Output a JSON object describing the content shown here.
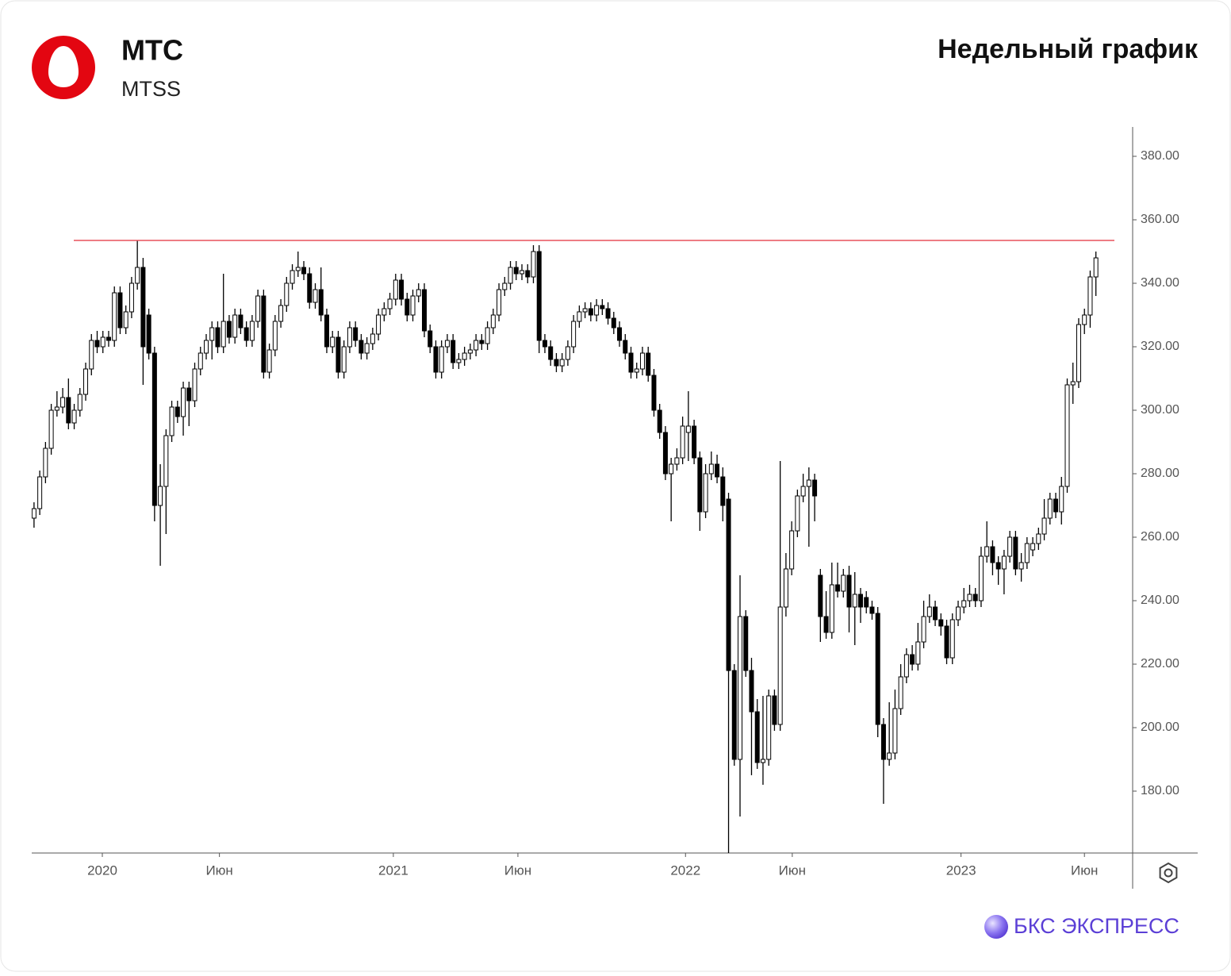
{
  "chart_data": {
    "type": "candlestick",
    "title": "МТС",
    "subtitle": "MTSS",
    "chart_label": "Недельный график",
    "brand": "БКС ЭКСПРЕСС",
    "up_color": "#ffffff",
    "down_color": "#000000",
    "ylim": [
      160.5,
      389.25
    ],
    "yticks": [
      {
        "value": 180,
        "label": "180.00"
      },
      {
        "value": 200,
        "label": "200.00"
      },
      {
        "value": 220,
        "label": "220.00"
      },
      {
        "value": 240,
        "label": "240.00"
      },
      {
        "value": 260,
        "label": "260.00"
      },
      {
        "value": 280,
        "label": "280.00"
      },
      {
        "value": 300,
        "label": "300.00"
      },
      {
        "value": 320,
        "label": "320.00"
      },
      {
        "value": 340,
        "label": "340.00"
      },
      {
        "value": 360,
        "label": "360.00"
      },
      {
        "value": 380,
        "label": "380.00"
      }
    ],
    "xlim": [
      -0.4,
      191.4
    ],
    "xticks": [
      {
        "value": 11.9,
        "label": "2020"
      },
      {
        "value": 32.3,
        "label": "Июн"
      },
      {
        "value": 62.6,
        "label": "2021"
      },
      {
        "value": 84.3,
        "label": "Июн"
      },
      {
        "value": 113.5,
        "label": "2022"
      },
      {
        "value": 132.1,
        "label": "Июн"
      },
      {
        "value": 161.5,
        "label": "2023"
      },
      {
        "value": 183,
        "label": "Июн"
      }
    ],
    "hline": {
      "value": 353.5,
      "color": "#e8505b"
    },
    "values": [
      [
        266,
        271,
        263,
        269
      ],
      [
        269,
        281,
        267,
        279
      ],
      [
        279,
        290,
        277,
        288
      ],
      [
        288,
        302,
        286,
        300
      ],
      [
        300,
        306,
        298,
        301
      ],
      [
        301,
        307,
        299,
        304
      ],
      [
        304,
        310,
        294,
        296
      ],
      [
        296,
        302,
        294,
        300
      ],
      [
        300,
        307,
        298,
        305
      ],
      [
        305,
        315,
        303,
        313
      ],
      [
        313,
        324,
        311,
        322
      ],
      [
        322,
        325,
        318,
        320
      ],
      [
        320,
        325,
        318,
        323
      ],
      [
        323,
        325,
        320,
        322
      ],
      [
        322,
        339,
        320,
        337
      ],
      [
        337,
        339,
        324,
        326
      ],
      [
        326,
        333,
        324,
        331
      ],
      [
        331,
        342,
        329,
        340
      ],
      [
        340,
        353.5,
        338,
        345
      ],
      [
        345,
        348,
        308,
        320
      ],
      [
        330,
        332,
        316,
        318
      ],
      [
        318,
        320,
        265,
        270
      ],
      [
        270,
        283,
        251,
        276
      ],
      [
        276,
        294,
        261,
        292
      ],
      [
        292,
        303,
        290,
        301
      ],
      [
        301,
        303,
        296,
        298
      ],
      [
        298,
        309,
        292,
        307
      ],
      [
        307,
        309,
        295,
        303
      ],
      [
        303,
        315,
        301,
        313
      ],
      [
        313,
        320,
        311,
        318
      ],
      [
        318,
        324,
        316,
        322
      ],
      [
        322,
        328,
        316,
        326
      ],
      [
        326,
        328,
        318,
        320
      ],
      [
        320,
        343,
        318,
        328
      ],
      [
        328,
        330,
        321,
        323
      ],
      [
        323,
        332,
        321,
        330
      ],
      [
        330,
        332,
        324,
        326
      ],
      [
        326,
        328,
        320,
        322
      ],
      [
        322,
        330,
        320,
        328
      ],
      [
        328,
        338,
        326,
        336
      ],
      [
        336,
        338,
        310,
        312
      ],
      [
        312,
        321,
        310,
        319
      ],
      [
        319,
        330,
        317,
        328
      ],
      [
        328,
        335,
        326,
        333
      ],
      [
        333,
        342,
        331,
        340
      ],
      [
        340,
        346,
        338,
        344
      ],
      [
        344,
        350,
        342,
        345
      ],
      [
        345,
        347,
        341,
        343
      ],
      [
        343,
        345,
        332,
        334
      ],
      [
        334,
        340,
        332,
        338
      ],
      [
        338,
        345,
        328,
        330
      ],
      [
        330,
        332,
        318,
        320
      ],
      [
        320,
        325,
        318,
        323
      ],
      [
        323,
        325,
        310,
        312
      ],
      [
        312,
        322,
        310,
        320
      ],
      [
        320,
        328,
        318,
        326
      ],
      [
        326,
        328,
        320,
        322
      ],
      [
        322,
        324,
        316,
        318
      ],
      [
        318,
        323,
        316,
        321
      ],
      [
        321,
        326,
        319,
        324
      ],
      [
        324,
        332,
        322,
        330
      ],
      [
        330,
        334,
        328,
        332
      ],
      [
        332,
        337,
        330,
        335
      ],
      [
        335,
        343,
        333,
        341
      ],
      [
        341,
        343,
        333,
        335
      ],
      [
        335,
        337,
        328,
        330
      ],
      [
        330,
        338,
        328,
        336
      ],
      [
        336,
        340,
        334,
        338
      ],
      [
        338,
        340,
        323,
        325
      ],
      [
        325,
        327,
        318,
        320
      ],
      [
        320,
        322,
        310,
        312
      ],
      [
        312,
        322,
        310,
        320
      ],
      [
        320,
        324,
        318,
        322
      ],
      [
        322,
        324,
        313,
        315
      ],
      [
        315,
        318,
        313,
        316
      ],
      [
        316,
        320,
        314,
        318
      ],
      [
        318,
        321,
        316,
        319
      ],
      [
        319,
        324,
        317,
        322
      ],
      [
        322,
        324,
        319,
        321
      ],
      [
        321,
        328,
        319,
        326
      ],
      [
        326,
        332,
        324,
        330
      ],
      [
        330,
        340,
        328,
        338
      ],
      [
        338,
        342,
        336,
        340
      ],
      [
        340,
        347,
        338,
        345
      ],
      [
        345,
        347,
        341,
        343
      ],
      [
        343,
        346,
        341,
        344
      ],
      [
        344,
        346,
        340,
        342
      ],
      [
        342,
        352,
        340,
        350
      ],
      [
        350,
        352,
        318,
        322
      ],
      [
        322,
        324,
        318,
        320
      ],
      [
        320,
        322,
        314,
        316
      ],
      [
        316,
        318,
        312,
        314
      ],
      [
        314,
        318,
        312,
        316
      ],
      [
        316,
        322,
        314,
        320
      ],
      [
        320,
        330,
        318,
        328
      ],
      [
        328,
        333,
        326,
        331
      ],
      [
        331,
        334,
        329,
        332
      ],
      [
        332,
        334,
        328,
        330
      ],
      [
        330,
        335,
        328,
        333
      ],
      [
        333,
        335,
        330,
        332
      ],
      [
        332,
        334,
        327,
        329
      ],
      [
        329,
        331,
        324,
        326
      ],
      [
        326,
        328,
        320,
        322
      ],
      [
        322,
        324,
        316,
        318
      ],
      [
        318,
        320,
        310,
        312
      ],
      [
        312,
        315,
        310,
        313
      ],
      [
        313,
        320,
        311,
        318
      ],
      [
        318,
        320,
        309,
        311
      ],
      [
        311,
        313,
        298,
        300
      ],
      [
        300,
        302,
        291,
        293
      ],
      [
        293,
        295,
        278,
        280
      ],
      [
        280,
        285,
        265,
        283
      ],
      [
        283,
        288,
        281,
        285
      ],
      [
        285,
        298,
        283,
        295
      ],
      [
        293,
        306,
        284,
        295
      ],
      [
        295,
        297,
        283,
        285
      ],
      [
        285,
        287,
        262,
        268
      ],
      [
        268,
        283,
        266,
        280
      ],
      [
        280,
        287,
        278,
        283
      ],
      [
        283,
        286,
        277,
        279
      ],
      [
        279,
        282,
        265,
        270
      ],
      [
        272,
        274,
        155,
        218
      ],
      [
        218,
        220,
        188,
        190
      ],
      [
        190,
        248,
        172,
        235
      ],
      [
        235,
        237,
        216,
        218
      ],
      [
        218,
        222,
        185,
        205
      ],
      [
        205,
        209,
        187,
        189
      ],
      [
        189,
        210,
        182,
        190
      ],
      [
        190,
        212,
        188,
        210
      ],
      [
        210,
        212,
        199,
        201
      ],
      [
        201,
        284,
        199,
        238
      ],
      [
        238,
        255,
        235,
        250
      ],
      [
        250,
        265,
        248,
        262
      ],
      [
        262,
        275,
        260,
        273
      ],
      [
        273,
        280,
        271,
        276
      ],
      [
        276,
        282,
        257,
        278
      ],
      [
        278,
        280,
        265,
        273
      ],
      [
        248,
        250,
        227,
        235
      ],
      [
        235,
        243,
        228,
        230
      ],
      [
        230,
        252,
        228,
        245
      ],
      [
        245,
        252,
        241,
        243
      ],
      [
        243,
        250,
        241,
        248
      ],
      [
        248,
        251,
        230,
        238
      ],
      [
        238,
        249,
        226,
        242
      ],
      [
        242,
        244,
        233,
        238
      ],
      [
        241,
        243,
        236,
        238
      ],
      [
        238,
        240,
        234,
        236
      ],
      [
        236,
        238,
        197,
        201
      ],
      [
        201,
        203,
        176,
        190
      ],
      [
        190,
        208,
        188,
        192
      ],
      [
        192,
        212,
        190,
        206
      ],
      [
        206,
        220,
        204,
        216
      ],
      [
        216,
        225,
        214,
        223
      ],
      [
        223,
        226,
        218,
        220
      ],
      [
        220,
        233,
        218,
        227
      ],
      [
        227,
        240,
        225,
        235
      ],
      [
        235,
        242,
        233,
        238
      ],
      [
        238,
        240,
        232,
        234
      ],
      [
        234,
        236,
        229,
        232
      ],
      [
        232,
        234,
        220,
        222
      ],
      [
        222,
        236,
        220,
        234
      ],
      [
        234,
        240,
        232,
        238
      ],
      [
        238,
        244,
        236,
        240
      ],
      [
        240,
        245,
        238,
        242
      ],
      [
        242,
        244,
        238,
        240
      ],
      [
        240,
        257,
        238,
        254
      ],
      [
        254,
        265,
        252,
        257
      ],
      [
        257,
        259,
        248,
        252
      ],
      [
        252,
        254,
        245,
        250
      ],
      [
        250,
        256,
        242,
        254
      ],
      [
        254,
        262,
        252,
        260
      ],
      [
        260,
        262,
        248,
        250
      ],
      [
        250,
        255,
        246,
        252
      ],
      [
        252,
        260,
        250,
        258
      ],
      [
        256,
        260,
        254,
        258
      ],
      [
        258,
        263,
        256,
        261
      ],
      [
        261,
        272,
        259,
        266
      ],
      [
        266,
        274,
        264,
        272
      ],
      [
        272,
        274,
        266,
        268
      ],
      [
        268,
        279,
        264,
        276
      ],
      [
        276,
        310,
        274,
        308
      ],
      [
        308,
        315,
        302,
        309
      ],
      [
        309,
        329,
        307,
        327
      ],
      [
        327,
        332,
        324,
        330
      ],
      [
        330,
        344,
        326,
        342
      ],
      [
        342,
        350,
        336,
        348
      ]
    ]
  }
}
